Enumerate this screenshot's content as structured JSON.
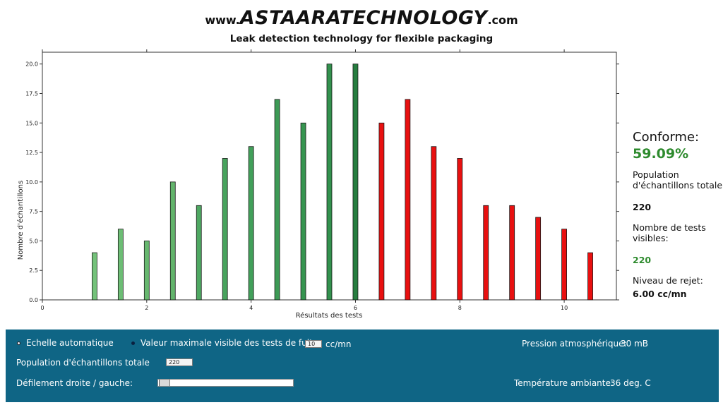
{
  "header": {
    "logo_prefix": "www.",
    "logo_main": "ASTAARA",
    "logo_accent": "",
    "logo_suffix": "TECHNOLOGY",
    "logo_tld": ".com",
    "tagline": "Leak detection technology for flexible packaging"
  },
  "chart_data": {
    "type": "bar",
    "title": "",
    "xlabel": "Résultats des tests",
    "ylabel": "Nombre d'échantillons",
    "xlim": [
      0,
      11
    ],
    "ylim": [
      0,
      21
    ],
    "x_ticks": [
      0,
      2,
      4,
      6,
      8,
      10
    ],
    "x_tick_labels": [
      "0",
      "2",
      "4",
      "6",
      "8",
      "10"
    ],
    "y_ticks": [
      0,
      2.5,
      5,
      7.5,
      10,
      12.5,
      15,
      17.5,
      20
    ],
    "y_tick_labels": [
      "0.0",
      "2.5",
      "5.0",
      "7.5",
      "10.0",
      "12.5",
      "15.0",
      "17.5",
      "20.0"
    ],
    "grid": false,
    "x": [
      1,
      1.5,
      2,
      2.5,
      3,
      3.5,
      4,
      4.5,
      5,
      5.5,
      6,
      6.5,
      7,
      7.5,
      8,
      8.5,
      9,
      9.5,
      10,
      10.5
    ],
    "values": [
      4,
      6,
      5,
      10,
      8,
      12,
      13,
      17,
      15,
      20,
      20,
      15,
      17,
      13,
      12,
      8,
      8,
      7,
      6,
      4
    ],
    "bar_colors": [
      "#74c27a",
      "#6dbd75",
      "#67b86f",
      "#63b46c",
      "#4ea862",
      "#48a35d",
      "#42a05a",
      "#3c9a55",
      "#369550",
      "#33914e",
      "#267d3f",
      "#e81010",
      "#e81010",
      "#e81010",
      "#e81010",
      "#e81010",
      "#e81010",
      "#e81010",
      "#e81010",
      "#e81010"
    ]
  },
  "stats": {
    "conforme_label": "Conforme:",
    "conforme_value": "59.09%",
    "population_label": "Population d'échantillons totale",
    "population_value": "220",
    "visible_label": "Nombre de tests visibles:",
    "visible_value": "220",
    "reject_label": "Niveau de rejet:",
    "reject_value": "6.00 cc/mn"
  },
  "controls": {
    "auto_scale_label": "Echelle automatique",
    "max_value_label": "Valeur maximale visible des tests de fuite:",
    "max_value": "10",
    "max_value_unit": "cc/mn",
    "population_label": "Population d'échantillons totale",
    "population_value": "220",
    "scroll_label": "Défilement droite / gauche:",
    "pressure_label": "Pression atmosphérique:",
    "pressure_value": "30 mB",
    "temperature_label": "Température ambiante:",
    "temperature_value": "36 deg. C"
  }
}
